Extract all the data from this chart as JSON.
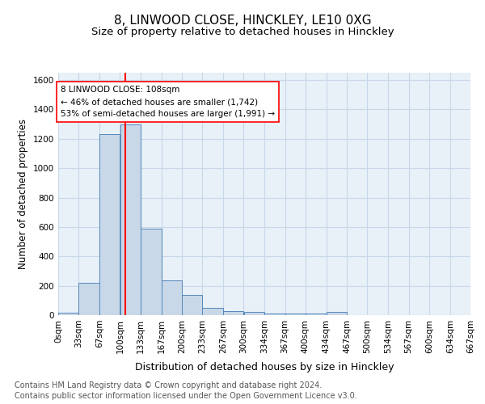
{
  "title": "8, LINWOOD CLOSE, HINCKLEY, LE10 0XG",
  "subtitle": "Size of property relative to detached houses in Hinckley",
  "xlabel": "Distribution of detached houses by size in Hinckley",
  "ylabel": "Number of detached properties",
  "footnote1": "Contains HM Land Registry data © Crown copyright and database right 2024.",
  "footnote2": "Contains public sector information licensed under the Open Government Licence v3.0.",
  "annotation_line1": "8 LINWOOD CLOSE: 108sqm",
  "annotation_line2": "← 46% of detached houses are smaller (1,742)",
  "annotation_line3": "53% of semi-detached houses are larger (1,991) →",
  "bin_edges": [
    0,
    33,
    67,
    100,
    133,
    167,
    200,
    233,
    267,
    300,
    334,
    367,
    400,
    434,
    467,
    500,
    534,
    567,
    600,
    634,
    667
  ],
  "bar_heights": [
    15,
    220,
    1230,
    1300,
    590,
    235,
    138,
    47,
    28,
    22,
    10,
    10,
    10,
    20,
    0,
    0,
    0,
    0,
    0,
    0
  ],
  "bar_color": "#c8d8e8",
  "bar_edge_color": "#5588bb",
  "vline_x": 108,
  "vline_color": "red",
  "annotation_box_color": "white",
  "annotation_box_edge": "red",
  "ylim": [
    0,
    1650
  ],
  "xlim": [
    0,
    667
  ],
  "grid_color": "#c8d8e8",
  "bg_color": "#e8f0f8",
  "title_fontsize": 11,
  "subtitle_fontsize": 9.5,
  "xlabel_fontsize": 9,
  "ylabel_fontsize": 8.5,
  "tick_fontsize": 7.5,
  "footnote_fontsize": 7,
  "annotation_fontsize": 7.5
}
